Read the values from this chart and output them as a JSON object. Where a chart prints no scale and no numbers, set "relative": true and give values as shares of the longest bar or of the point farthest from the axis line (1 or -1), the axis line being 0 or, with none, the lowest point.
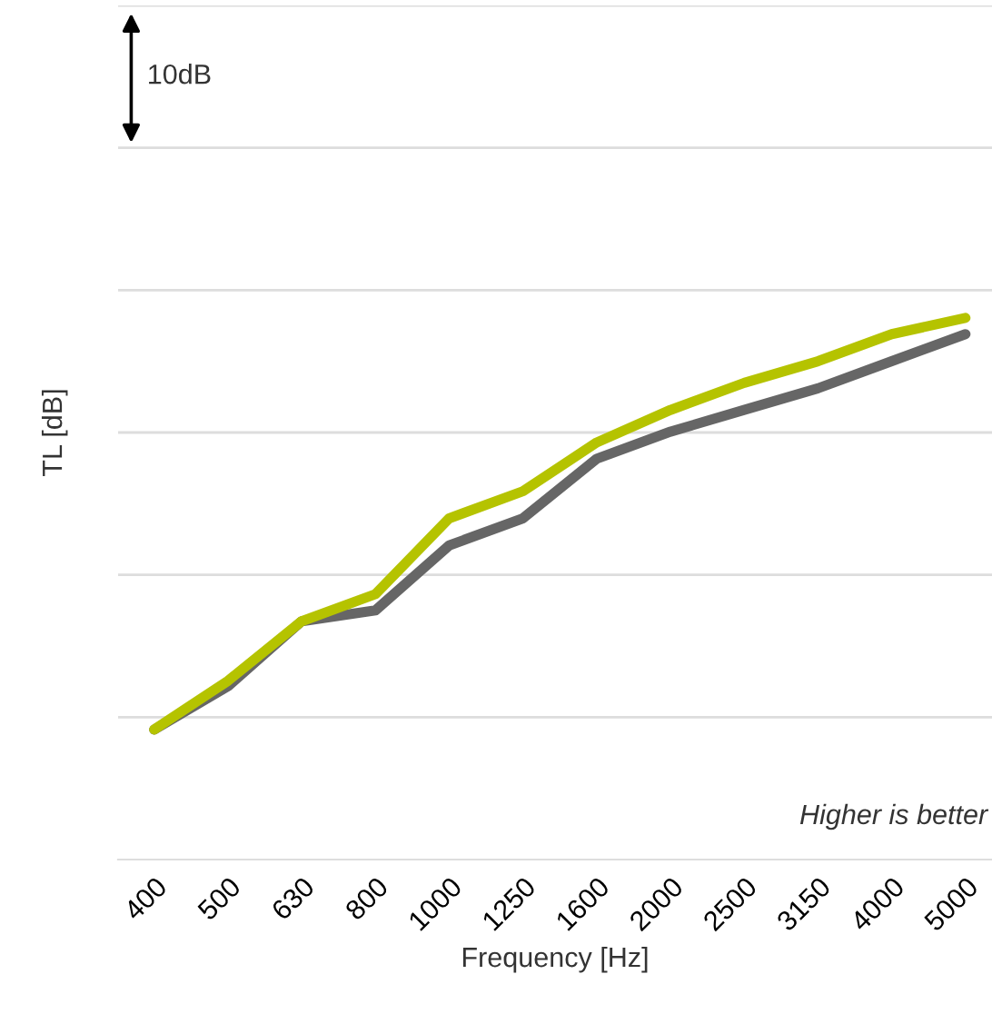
{
  "chart_data": {
    "type": "line",
    "relative": true,
    "xlabel": "Frequency [Hz]",
    "ylabel": "TL [dB]",
    "categories": [
      "400",
      "500",
      "630",
      "800",
      "1000",
      "1250",
      "1600",
      "2000",
      "2500",
      "3150",
      "4000",
      "5000"
    ],
    "series": [
      {
        "color": "#b5c300",
        "values": [
          0.24,
          0.33,
          0.44,
          0.49,
          0.63,
          0.68,
          0.77,
          0.83,
          0.88,
          0.92,
          0.97,
          1
        ]
      },
      {
        "color": "#666666",
        "values": [
          0.24,
          0.32,
          0.44,
          0.46,
          0.58,
          0.63,
          0.74,
          0.79,
          0.83,
          0.87,
          0.92,
          0.97
        ]
      }
    ],
    "annotations": [
      "10dB",
      "Higher is better"
    ],
    "grid": "y",
    "legend": false,
    "marker": "none",
    "line_style": "solid"
  }
}
